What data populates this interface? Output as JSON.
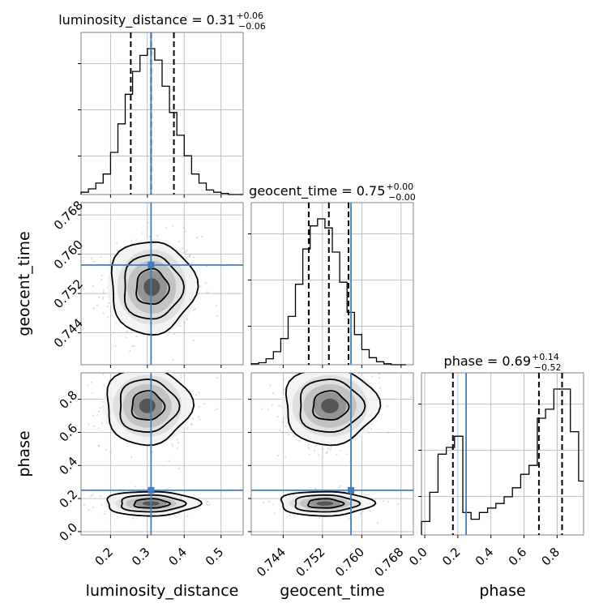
{
  "chart_data": {
    "type": "corner",
    "parameters": [
      {
        "name": "luminosity_distance",
        "xlabel": "luminosity_distance",
        "title": {
          "main": "luminosity_distance = 0.31",
          "sup": "+0.06",
          "sub": "−0.06"
        },
        "range": [
          0.12,
          0.56
        ],
        "ticks": [
          0.2,
          0.3,
          0.4,
          0.5
        ],
        "tick_labels": [
          "0.2",
          "0.3",
          "0.4",
          "0.5"
        ],
        "truth": 0.31,
        "quantiles": [
          0.255,
          0.31,
          0.372
        ],
        "hist": {
          "edges": [
            0.12,
            0.14,
            0.16,
            0.18,
            0.2,
            0.22,
            0.24,
            0.26,
            0.28,
            0.3,
            0.32,
            0.34,
            0.36,
            0.38,
            0.4,
            0.42,
            0.44,
            0.46,
            0.48,
            0.5,
            0.52,
            0.54,
            0.56
          ],
          "counts": [
            2,
            5,
            10,
            18,
            37,
            62,
            88,
            108,
            122,
            128,
            118,
            95,
            72,
            52,
            34,
            18,
            10,
            4,
            2,
            1,
            0,
            0
          ]
        }
      },
      {
        "name": "geocent_time",
        "xlabel": "geocent_time",
        "ylabel": "geocent_time",
        "title": {
          "main": "geocent_time = 0.75",
          "sup": "+0.00",
          "sub": "−0.00"
        },
        "range": [
          0.7375,
          0.7705
        ],
        "ticks": [
          0.744,
          0.752,
          0.76,
          0.768
        ],
        "tick_labels": [
          "0.744",
          "0.752",
          "0.760",
          "0.768"
        ],
        "truth": 0.7578,
        "quantiles": [
          0.7492,
          0.7533,
          0.7573
        ],
        "hist": {
          "edges": [
            0.7375,
            0.739,
            0.7405,
            0.742,
            0.7435,
            0.745,
            0.7465,
            0.748,
            0.7495,
            0.751,
            0.7525,
            0.754,
            0.7555,
            0.757,
            0.7585,
            0.76,
            0.7615,
            0.763,
            0.7645,
            0.766,
            0.7675,
            0.769
          ],
          "counts": [
            1,
            2,
            6,
            13,
            26,
            48,
            80,
            115,
            138,
            145,
            136,
            112,
            82,
            52,
            30,
            15,
            7,
            3,
            1,
            0,
            0
          ]
        }
      },
      {
        "name": "phase",
        "xlabel": "phase",
        "ylabel": "phase",
        "title": {
          "main": "phase = 0.69",
          "sup": "+0.14",
          "sub": "−0.52"
        },
        "range": [
          -0.02,
          0.96
        ],
        "ticks": [
          0.0,
          0.2,
          0.4,
          0.6,
          0.8
        ],
        "tick_labels": [
          "0.0",
          "0.2",
          "0.4",
          "0.6",
          "0.8"
        ],
        "truth": 0.25,
        "quantiles": [
          0.17,
          0.69,
          0.83
        ],
        "hist": {
          "edges": [
            -0.02,
            0.03,
            0.08,
            0.13,
            0.18,
            0.23,
            0.28,
            0.33,
            0.38,
            0.43,
            0.48,
            0.53,
            0.58,
            0.63,
            0.68,
            0.73,
            0.78,
            0.83,
            0.88,
            0.93,
            0.96
          ],
          "counts": [
            6,
            19,
            36,
            39,
            44,
            10,
            7,
            10,
            12,
            14,
            17,
            21,
            27,
            31,
            52,
            56,
            65,
            65,
            46,
            24
          ]
        }
      }
    ],
    "pairs": [
      {
        "x": "luminosity_distance",
        "y": "geocent_time",
        "mean": [
          0.312,
          0.7533
        ],
        "sd": [
          0.055,
          0.0045
        ],
        "rho": 0.0,
        "modes": [
          {
            "cx": 0.312,
            "cy": 0.7533,
            "sx": 0.055,
            "sy": 0.0045,
            "w": 1.0
          }
        ]
      },
      {
        "x": "luminosity_distance",
        "y": "phase",
        "mean": [
          0.31,
          0.6
        ],
        "sd": [
          0.06,
          0.25
        ],
        "rho": 0.0,
        "modes": [
          {
            "cx": 0.3,
            "cy": 0.76,
            "sx": 0.055,
            "sy": 0.11,
            "w": 0.72
          },
          {
            "cx": 0.31,
            "cy": 0.17,
            "sx": 0.06,
            "sy": 0.035,
            "w": 0.28
          }
        ]
      },
      {
        "x": "geocent_time",
        "y": "phase",
        "mean": [
          0.7533,
          0.6
        ],
        "sd": [
          0.0045,
          0.25
        ],
        "rho": 0.0,
        "modes": [
          {
            "cx": 0.7535,
            "cy": 0.76,
            "sx": 0.0045,
            "sy": 0.11,
            "w": 0.72
          },
          {
            "cx": 0.7525,
            "cy": 0.17,
            "sx": 0.0045,
            "sy": 0.035,
            "w": 0.28
          }
        ]
      }
    ],
    "colors": {
      "truth": "#3f7fbf",
      "hist": "#000000",
      "contour": "#000000",
      "scatter": "#999999"
    },
    "grid": true
  }
}
